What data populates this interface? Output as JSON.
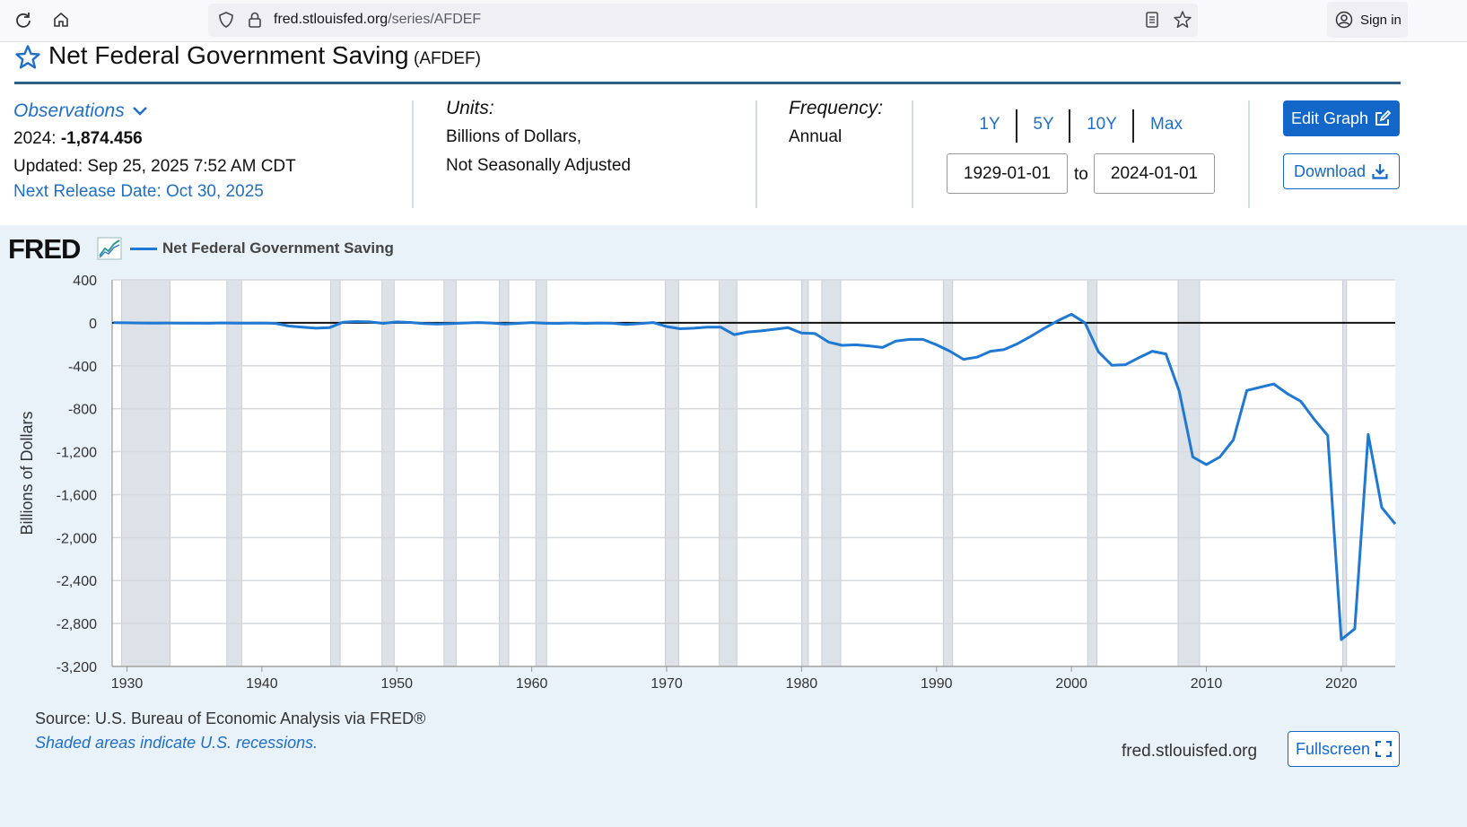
{
  "browser": {
    "url_domain": "fred.stlouisfed.org",
    "url_path": "/series/AFDEF",
    "signin_label": "Sign in"
  },
  "header": {
    "title": "Net Federal Government Saving",
    "series_id": "(AFDEF)"
  },
  "observations": {
    "label": "Observations",
    "latest_prefix": "2024: ",
    "latest_value": "-1,874.456",
    "updated": "Updated: Sep 25, 2025 7:52 AM CDT",
    "next_release": "Next Release Date: Oct 30, 2025"
  },
  "units": {
    "label": "Units:",
    "line1": "Billions of Dollars,",
    "line2": "Not Seasonally Adjusted"
  },
  "frequency": {
    "label": "Frequency:",
    "value": "Annual"
  },
  "range": {
    "buttons": [
      "1Y",
      "5Y",
      "10Y",
      "Max"
    ],
    "start": "1929-01-01",
    "end": "2024-01-01",
    "to_label": "to"
  },
  "actions": {
    "edit_label": "Edit Graph",
    "download_label": "Download",
    "fullscreen_label": "Fullscreen"
  },
  "graph": {
    "logo": "FRED",
    "source": "Source: U.S. Bureau of Economic Analysis via FRED®",
    "recession_note": "Shaded areas indicate U.S. recessions.",
    "site": "fred.stlouisfed.org"
  },
  "colors": {
    "accent": "#1367c9",
    "series": "#1f78d1",
    "panel_bg": "#e9f1f9",
    "recession": "#dde2e8"
  },
  "chart_data": {
    "type": "line",
    "ylabel": "Billions of Dollars",
    "xlabel": "",
    "legend": "top-left",
    "grid": true,
    "xlim": [
      1928.9,
      2024
    ],
    "ylim": [
      -3200,
      400
    ],
    "yticks": [
      400,
      0,
      -400,
      -800,
      -1200,
      -1600,
      -2000,
      -2400,
      -2800,
      -3200
    ],
    "ytick_labels": [
      "400",
      "0",
      "-400",
      "-800",
      "-1,200",
      "-1,600",
      "-2,000",
      "-2,400",
      "-2,800",
      "-3,200"
    ],
    "xticks": [
      1930,
      1940,
      1950,
      1960,
      1970,
      1980,
      1990,
      2000,
      2010,
      2020
    ],
    "recessions": [
      [
        1929.6,
        1933.2
      ],
      [
        1937.4,
        1938.5
      ],
      [
        1945.1,
        1945.8
      ],
      [
        1948.9,
        1949.8
      ],
      [
        1953.5,
        1954.4
      ],
      [
        1957.6,
        1958.3
      ],
      [
        1960.3,
        1961.1
      ],
      [
        1969.9,
        1970.9
      ],
      [
        1973.9,
        1975.2
      ],
      [
        1980.0,
        1980.5
      ],
      [
        1981.5,
        1982.9
      ],
      [
        1990.5,
        1991.2
      ],
      [
        2001.2,
        2001.9
      ],
      [
        2007.9,
        2009.5
      ],
      [
        2020.1,
        2020.4
      ]
    ],
    "series": [
      {
        "name": "Net Federal Government Saving",
        "x": [
          1929,
          1930,
          1931,
          1932,
          1933,
          1934,
          1935,
          1936,
          1937,
          1938,
          1939,
          1940,
          1941,
          1942,
          1943,
          1944,
          1945,
          1946,
          1947,
          1948,
          1949,
          1950,
          1951,
          1952,
          1953,
          1954,
          1955,
          1956,
          1957,
          1958,
          1959,
          1960,
          1961,
          1962,
          1963,
          1964,
          1965,
          1966,
          1967,
          1968,
          1969,
          1970,
          1971,
          1972,
          1973,
          1974,
          1975,
          1976,
          1977,
          1978,
          1979,
          1980,
          1981,
          1982,
          1983,
          1984,
          1985,
          1986,
          1987,
          1988,
          1989,
          1990,
          1991,
          1992,
          1993,
          1994,
          1995,
          1996,
          1997,
          1998,
          1999,
          2000,
          2001,
          2002,
          2003,
          2004,
          2005,
          2006,
          2007,
          2008,
          2009,
          2010,
          2011,
          2012,
          2013,
          2014,
          2015,
          2016,
          2017,
          2018,
          2019,
          2020,
          2021,
          2022,
          2023,
          2024
        ],
        "y": [
          1,
          0,
          -2,
          -3,
          -2,
          -3,
          -3,
          -4,
          -1,
          -3,
          -3,
          -2,
          -5,
          -30,
          -40,
          -50,
          -45,
          5,
          12,
          8,
          -5,
          8,
          3,
          -8,
          -12,
          -8,
          -2,
          2,
          -2,
          -12,
          -5,
          2,
          -4,
          -5,
          -2,
          -5,
          -2,
          -4,
          -15,
          -8,
          2,
          -35,
          -55,
          -50,
          -40,
          -40,
          -110,
          -85,
          -75,
          -60,
          -45,
          -95,
          -100,
          -180,
          -210,
          -205,
          -215,
          -230,
          -170,
          -155,
          -155,
          -205,
          -265,
          -340,
          -320,
          -265,
          -250,
          -195,
          -125,
          -50,
          20,
          80,
          0,
          -270,
          -395,
          -390,
          -325,
          -265,
          -290,
          -640,
          -1250,
          -1320,
          -1250,
          -1090,
          -630,
          -600,
          -570,
          -660,
          -730,
          -900,
          -1050,
          -2950,
          -2850,
          -1040,
          -1720,
          -1874
        ]
      }
    ]
  }
}
